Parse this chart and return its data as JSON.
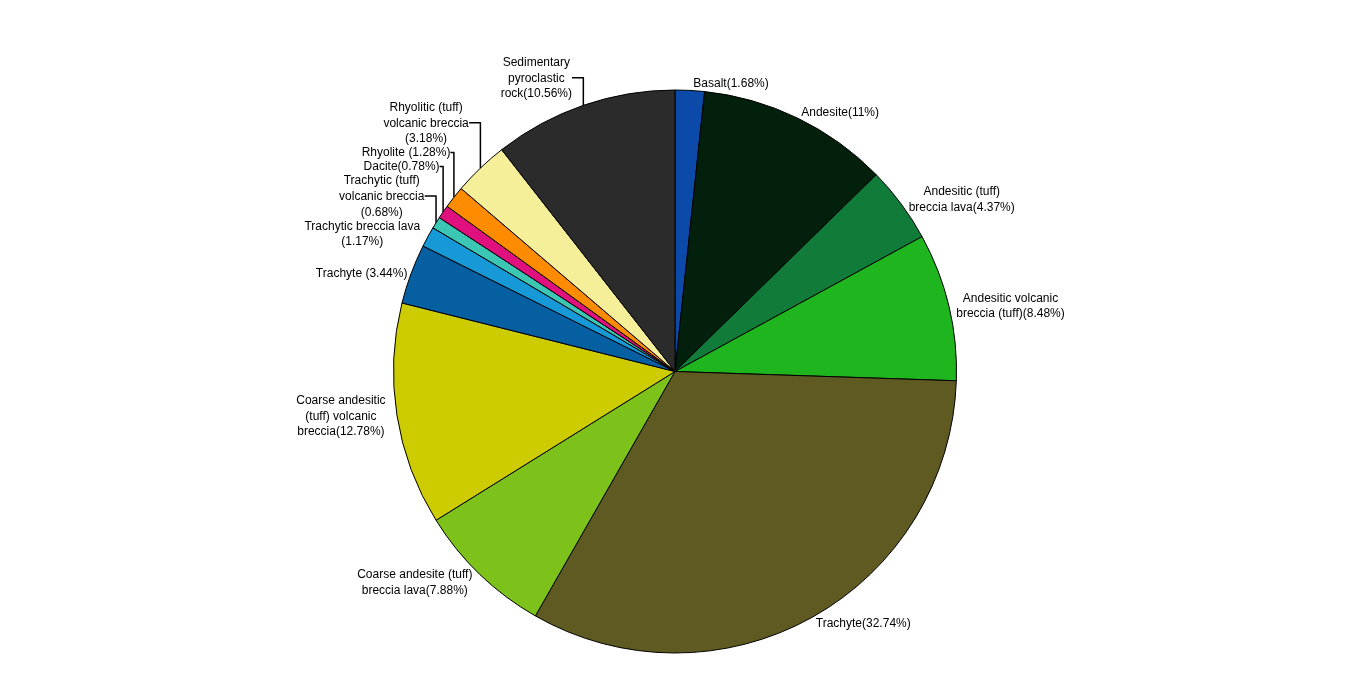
{
  "chart_data": {
    "type": "pie",
    "categories": [
      "Basalt(1.68%)",
      "Andesite(11%)",
      "Andesitic (tuff) breccia lava(4.37%)",
      "Andesitic volcanic breccia (tuff)(8.48%)",
      "Trachyte(32.74%)",
      "Coarse andesite (tuff) breccia lava(7.88%)",
      "Coarse andesitic (tuff) volcanic breccia(12.78%)",
      "Trachyte (3.44%)",
      "Trachytic breccia lava (1.17%)",
      "Trachytic (tuff) volcanic breccia (0.68%)",
      "Dacite(0.78%)",
      "Rhyolite (1.28%)",
      "Rhyolitic (tuff) volcanic breccia (3.18%)",
      "Sedimentary pyroclastic rock(10.56%)"
    ],
    "values": [
      1.68,
      11,
      4.37,
      8.48,
      32.74,
      7.88,
      12.78,
      3.44,
      1.17,
      0.68,
      0.78,
      1.28,
      3.18,
      10.56
    ],
    "colors": [
      "#0b4aa8",
      "#02200c",
      "#117c3a",
      "#1eb51e",
      "#5f5a22",
      "#7cc21a",
      "#cccc00",
      "#065fa0",
      "#1699d6",
      "#3cc6b4",
      "#e0117f",
      "#ff8c00",
      "#f5ef9a",
      "#2b2b2b"
    ]
  }
}
